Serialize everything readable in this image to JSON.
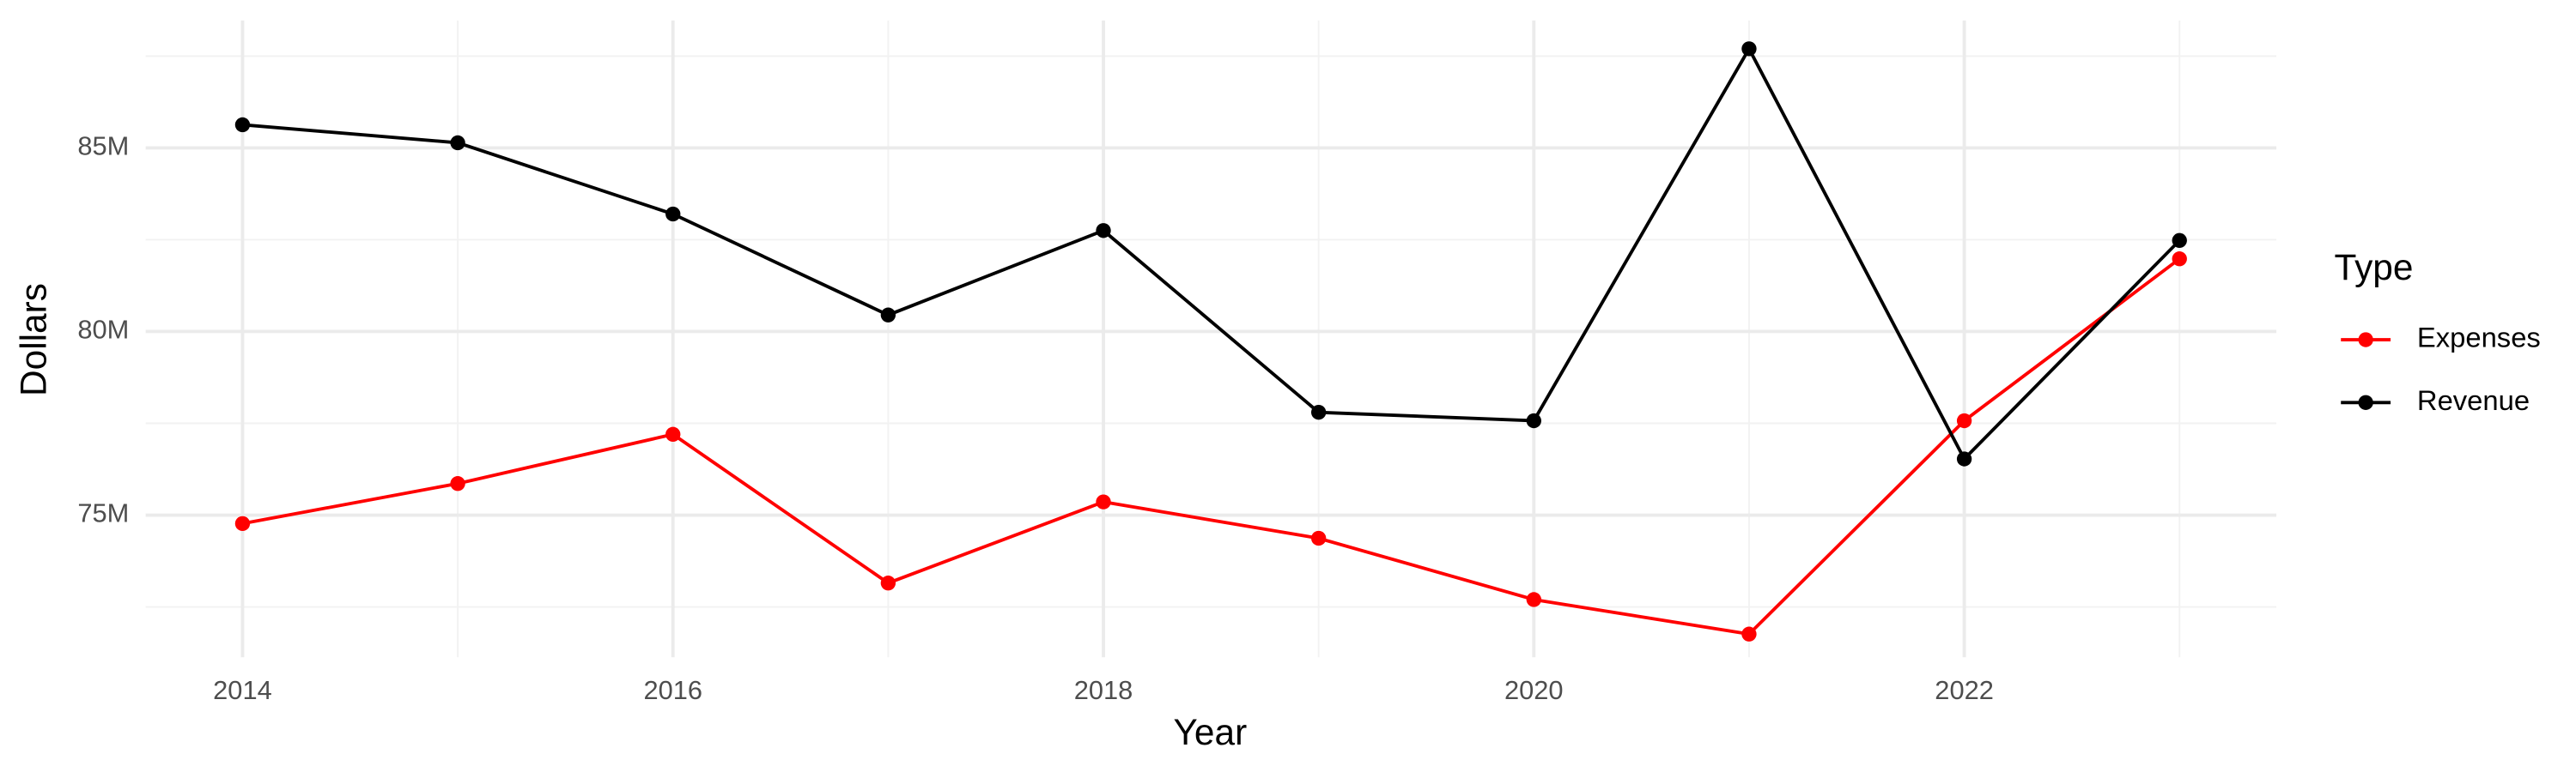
{
  "chart_data": {
    "type": "line",
    "x_label": "Year",
    "y_label": "Dollars",
    "x": [
      2014,
      2015,
      2016,
      2017,
      2018,
      2019,
      2020,
      2021,
      2022,
      2023
    ],
    "series": [
      {
        "name": "Expenses",
        "color": "#ff0000",
        "values": [
          74770000,
          75860000,
          77200000,
          73150000,
          75360000,
          74370000,
          72700000,
          71760000,
          77570000,
          81980000
        ]
      },
      {
        "name": "Revenue",
        "color": "#000000",
        "values": [
          85630000,
          85140000,
          83200000,
          80450000,
          82750000,
          77800000,
          77570000,
          87700000,
          76530000,
          82480000
        ]
      }
    ],
    "xlim": [
      2013.55,
      2023.45
    ],
    "xticks": [
      2014,
      2016,
      2018,
      2020,
      2022
    ],
    "ylim": [
      71130000,
      88470000
    ],
    "yticks": [
      {
        "value": 75000000,
        "label": "75M"
      },
      {
        "value": 80000000,
        "label": "80M"
      },
      {
        "value": 85000000,
        "label": "85M"
      }
    ],
    "legend_title": "Type",
    "legend_position": "right",
    "grid": true
  }
}
